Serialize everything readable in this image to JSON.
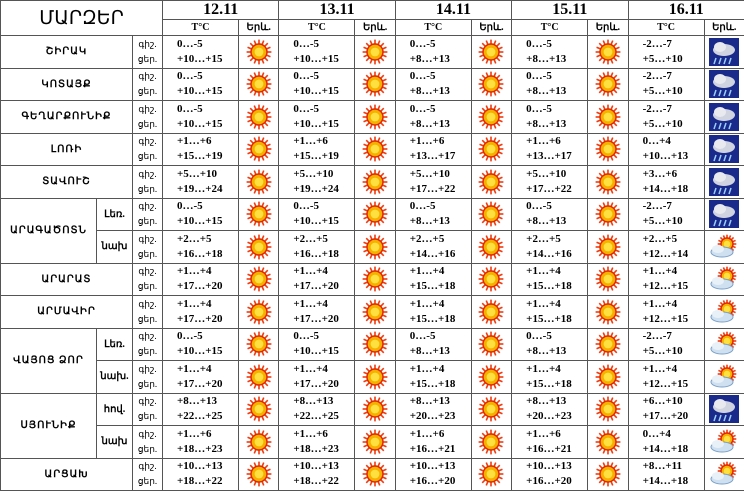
{
  "header": {
    "title": "ՄԱՐԶԵՐ",
    "dates": [
      "12.11",
      "13.11",
      "14.11",
      "15.11",
      "16.11"
    ],
    "temp_label": "T°C",
    "icon_label": "Երև."
  },
  "labels": {
    "night": "գիշ.",
    "day": "ցեր."
  },
  "regions": [
    {
      "name": "ՇԻՐԱԿ",
      "rows": [
        {
          "days": [
            {
              "night": "0…-5",
              "day": "+10…+15",
              "icon": "sun"
            },
            {
              "night": "0…-5",
              "day": "+10…+15",
              "icon": "sun"
            },
            {
              "night": "0…-5",
              "day": "+8…+13",
              "icon": "sun"
            },
            {
              "night": "0…-5",
              "day": "+8…+13",
              "icon": "sun"
            },
            {
              "night": "-2…-7",
              "day": "+5…+10",
              "icon": "rain"
            }
          ]
        }
      ]
    },
    {
      "name": "ԿՈՏԱՅՔ",
      "rows": [
        {
          "days": [
            {
              "night": "0…-5",
              "day": "+10…+15",
              "icon": "sun"
            },
            {
              "night": "0…-5",
              "day": "+10…+15",
              "icon": "sun"
            },
            {
              "night": "0…-5",
              "day": "+8…+13",
              "icon": "sun"
            },
            {
              "night": "0…-5",
              "day": "+8…+13",
              "icon": "sun"
            },
            {
              "night": "-2…-7",
              "day": "+5…+10",
              "icon": "rain"
            }
          ]
        }
      ]
    },
    {
      "name": "ԳԵՂԱՐՔՈՒՆԻՔ",
      "rows": [
        {
          "days": [
            {
              "night": "0…-5",
              "day": "+10…+15",
              "icon": "sun"
            },
            {
              "night": "0…-5",
              "day": "+10…+15",
              "icon": "sun"
            },
            {
              "night": "0…-5",
              "day": "+8…+13",
              "icon": "sun"
            },
            {
              "night": "0…-5",
              "day": "+8…+13",
              "icon": "sun"
            },
            {
              "night": "-2…-7",
              "day": "+5…+10",
              "icon": "rain"
            }
          ]
        }
      ]
    },
    {
      "name": "ԼՈՌԻ",
      "rows": [
        {
          "days": [
            {
              "night": "+1…+6",
              "day": "+15…+19",
              "icon": "sun"
            },
            {
              "night": "+1…+6",
              "day": "+15…+19",
              "icon": "sun"
            },
            {
              "night": "+1…+6",
              "day": "+13…+17",
              "icon": "sun"
            },
            {
              "night": "+1…+6",
              "day": "+13…+17",
              "icon": "sun"
            },
            {
              "night": "0…+4",
              "day": "+10…+13",
              "icon": "rain"
            }
          ]
        }
      ]
    },
    {
      "name": "ՏԱՎՈՒՇ",
      "rows": [
        {
          "days": [
            {
              "night": "+5…+10",
              "day": "+19…+24",
              "icon": "sun"
            },
            {
              "night": "+5…+10",
              "day": "+19…+24",
              "icon": "sun"
            },
            {
              "night": "+5…+10",
              "day": "+17…+22",
              "icon": "sun"
            },
            {
              "night": "+5…+10",
              "day": "+17…+22",
              "icon": "sun"
            },
            {
              "night": "+3…+6",
              "day": "+14…+18",
              "icon": "rain"
            }
          ]
        }
      ]
    },
    {
      "name": "ԱՐԱԳԱԾՈՏՆ",
      "rows": [
        {
          "sub": "Լեռ.",
          "days": [
            {
              "night": "0…-5",
              "day": "+10…+15",
              "icon": "sun"
            },
            {
              "night": "0…-5",
              "day": "+10…+15",
              "icon": "sun"
            },
            {
              "night": "0…-5",
              "day": "+8…+13",
              "icon": "sun"
            },
            {
              "night": "0…-5",
              "day": "+8…+13",
              "icon": "sun"
            },
            {
              "night": "-2…-7",
              "day": "+5…+10",
              "icon": "rain"
            }
          ]
        },
        {
          "sub": "նախ",
          "days": [
            {
              "night": "+2…+5",
              "day": "+16…+18",
              "icon": "sun"
            },
            {
              "night": "+2…+5",
              "day": "+16…+18",
              "icon": "sun"
            },
            {
              "night": "+2…+5",
              "day": "+14…+16",
              "icon": "sun"
            },
            {
              "night": "+2…+5",
              "day": "+14…+16",
              "icon": "sun"
            },
            {
              "night": "+2…+5",
              "day": "+12…+14",
              "icon": "partly"
            }
          ]
        }
      ]
    },
    {
      "name": "ԱՐԱՐԱՏ",
      "rows": [
        {
          "days": [
            {
              "night": "+1…+4",
              "day": "+17…+20",
              "icon": "sun"
            },
            {
              "night": "+1…+4",
              "day": "+17…+20",
              "icon": "sun"
            },
            {
              "night": "+1…+4",
              "day": "+15…+18",
              "icon": "sun"
            },
            {
              "night": "+1…+4",
              "day": "+15…+18",
              "icon": "sun"
            },
            {
              "night": "+1…+4",
              "day": "+12…+15",
              "icon": "partly"
            }
          ]
        }
      ]
    },
    {
      "name": "ԱՐՄԱՎԻՐ",
      "rows": [
        {
          "days": [
            {
              "night": "+1…+4",
              "day": "+17…+20",
              "icon": "sun"
            },
            {
              "night": "+1…+4",
              "day": "+17…+20",
              "icon": "sun"
            },
            {
              "night": "+1…+4",
              "day": "+15…+18",
              "icon": "sun"
            },
            {
              "night": "+1…+4",
              "day": "+15…+18",
              "icon": "sun"
            },
            {
              "night": "+1…+4",
              "day": "+12…+15",
              "icon": "partly"
            }
          ]
        }
      ]
    },
    {
      "name": "ՎԱՅՈՑ ՁՈՐ",
      "rows": [
        {
          "sub": "Լեռ.",
          "days": [
            {
              "night": "0…-5",
              "day": "+10…+15",
              "icon": "sun"
            },
            {
              "night": "0…-5",
              "day": "+10…+15",
              "icon": "sun"
            },
            {
              "night": "0…-5",
              "day": "+8…+13",
              "icon": "sun"
            },
            {
              "night": "0…-5",
              "day": "+8…+13",
              "icon": "sun"
            },
            {
              "night": "-2…-7",
              "day": "+5…+10",
              "icon": "partly"
            }
          ]
        },
        {
          "sub": "նախ.",
          "days": [
            {
              "night": "+1…+4",
              "day": "+17…+20",
              "icon": "sun"
            },
            {
              "night": "+1…+4",
              "day": "+17…+20",
              "icon": "sun"
            },
            {
              "night": "+1…+4",
              "day": "+15…+18",
              "icon": "sun"
            },
            {
              "night": "+1…+4",
              "day": "+15…+18",
              "icon": "sun"
            },
            {
              "night": "+1…+4",
              "day": "+12…+15",
              "icon": "partly"
            }
          ]
        }
      ]
    },
    {
      "name": "ՍՅՈՒՆԻՔ",
      "rows": [
        {
          "sub": "հով.",
          "days": [
            {
              "night": "+8…+13",
              "day": "+22…+25",
              "icon": "sun"
            },
            {
              "night": "+8…+13",
              "day": "+22…+25",
              "icon": "sun"
            },
            {
              "night": "+8…+13",
              "day": "+20…+23",
              "icon": "sun"
            },
            {
              "night": "+8…+13",
              "day": "+20…+23",
              "icon": "sun"
            },
            {
              "night": "+6…+10",
              "day": "+17…+20",
              "icon": "rain"
            }
          ]
        },
        {
          "sub": "նախ",
          "days": [
            {
              "night": "+1…+6",
              "day": "+18…+23",
              "icon": "sun"
            },
            {
              "night": "+1…+6",
              "day": "+18…+23",
              "icon": "sun"
            },
            {
              "night": "+1…+6",
              "day": "+16…+21",
              "icon": "sun"
            },
            {
              "night": "+1…+6",
              "day": "+16…+21",
              "icon": "sun"
            },
            {
              "night": "0…+4",
              "day": "+14…+18",
              "icon": "partly"
            }
          ]
        }
      ]
    },
    {
      "name": "ԱՐՑԱԽ",
      "rows": [
        {
          "days": [
            {
              "night": "+10…+13",
              "day": "+18…+22",
              "icon": "sun"
            },
            {
              "night": "+10…+13",
              "day": "+18…+22",
              "icon": "sun"
            },
            {
              "night": "+10…+13",
              "day": "+16…+20",
              "icon": "sun"
            },
            {
              "night": "+10…+13",
              "day": "+16…+20",
              "icon": "sun"
            },
            {
              "night": "+8…+11",
              "day": "+14…+18",
              "icon": "partly"
            }
          ]
        }
      ]
    }
  ]
}
